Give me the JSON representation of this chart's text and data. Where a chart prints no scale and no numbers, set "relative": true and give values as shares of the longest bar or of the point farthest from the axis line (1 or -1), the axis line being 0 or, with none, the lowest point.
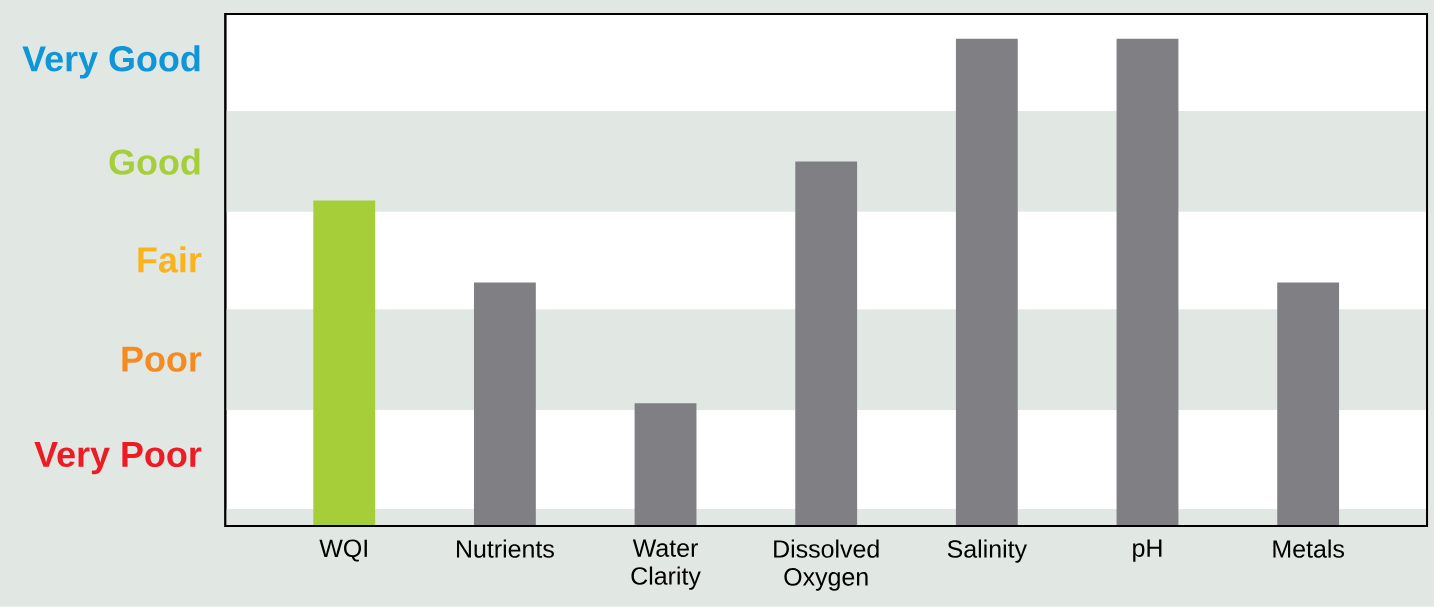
{
  "chart_data": {
    "type": "bar",
    "relative": true,
    "categories": [
      "WQI",
      "Nutrients",
      "Water Clarity",
      "Dissolved Oxygen",
      "Salinity",
      "pH",
      "Metals"
    ],
    "values": [
      0.668,
      0.5,
      0.252,
      0.748,
      1,
      1,
      0.5
    ],
    "colors": [
      "#a6ce39",
      "#808084",
      "#808084",
      "#808084",
      "#808084",
      "#808084",
      "#808084"
    ],
    "annotations": [
      "Very Good",
      "Good",
      "Fair",
      "Poor",
      "Very Poor"
    ],
    "bands": [
      {
        "axis": "y",
        "from": 0,
        "to": 0.035,
        "color": "#e1e8e4"
      },
      {
        "axis": "y",
        "from": 0.238,
        "to": 0.445,
        "color": "#e1e8e4"
      },
      {
        "axis": "y",
        "from": 0.645,
        "to": 0.852,
        "color": "#e1e8e4"
      }
    ]
  }
}
